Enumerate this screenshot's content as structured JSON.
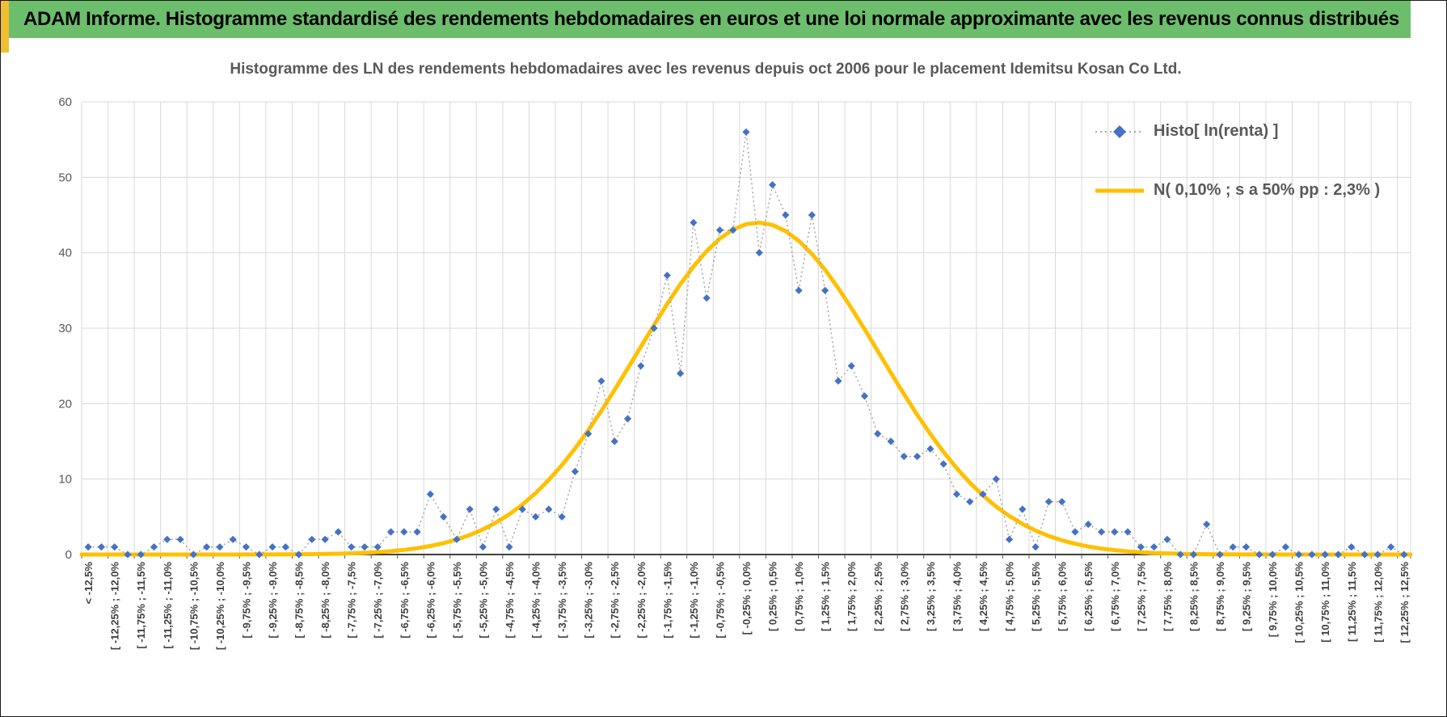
{
  "header": {
    "title": "ADAM Informe. Histogramme standardisé des rendements hebdomadaires en euros et une loi normale approximante avec les revenus connus distribués"
  },
  "colors": {
    "header_bg": "#6CBE6C",
    "accent_gold": "#EFBF2F",
    "grid": "#D9D9D9",
    "axis": "#000000",
    "text": "#595959"
  },
  "chart_data": {
    "type": "line",
    "title": "Histogramme des LN des rendements hebdomadaires avec les revenus depuis oct 2006 pour le placement Idemitsu Kosan Co Ltd.",
    "ylim": [
      0,
      60
    ],
    "y_ticks": [
      0,
      10,
      20,
      30,
      40,
      50,
      60
    ],
    "grid": true,
    "legend_position": "top-right",
    "bin_width_pct": 0.25,
    "range_pct": [
      -12.5,
      12.5
    ],
    "categories": [
      "< -12,5%",
      "",
      "[ -12,25% ; -12,0%",
      "",
      "[ -11,75% ; -11,5%",
      "",
      "[ -11,25% ; -11,0%",
      "",
      "[ -10,75% ; -10,5%",
      "",
      "[ -10,25% ; -10,0%",
      "",
      "[ -9,75% ; -9,5%",
      "",
      "[ -9,25% ; -9,0%",
      "",
      "[ -8,75% ; -8,5%",
      "",
      "[ -8,25% ; -8,0%",
      "",
      "[ -7,75% ; -7,5%",
      "",
      "[ -7,25% ; -7,0%",
      "",
      "[ -6,75% ; -6,5%",
      "",
      "[ -6,25% ; -6,0%",
      "",
      "[ -5,75% ; -5,5%",
      "",
      "[ -5,25% ; -5,0%",
      "",
      "[ -4,75% ; -4,5%",
      "",
      "[ -4,25% ; -4,0%",
      "",
      "[ -3,75% ; -3,5%",
      "",
      "[ -3,25% ; -3,0%",
      "",
      "[ -2,75% ; -2,5%",
      "",
      "[ -2,25% ; -2,0%",
      "",
      "[ -1,75% ; -1,5%",
      "",
      "[ -1,25% ; -1,0%",
      "",
      "[ -0,75% ; -0,5%",
      "",
      "[ -0,25% ; 0,0%",
      "",
      "[ 0,25% ; 0,5%",
      "",
      "[ 0,75% ; 1,0%",
      "",
      "[ 1,25% ; 1,5%",
      "",
      "[ 1,75% ; 2,0%",
      "",
      "[ 2,25% ; 2,5%",
      "",
      "[ 2,75% ; 3,0%",
      "",
      "[ 3,25% ; 3,5%",
      "",
      "[ 3,75% ; 4,0%",
      "",
      "[ 4,25% ; 4,5%",
      "",
      "[ 4,75% ; 5,0%",
      "",
      "[ 5,25% ; 5,5%",
      "",
      "[ 5,75% ; 6,0%",
      "",
      "[ 6,25% ; 6,5%",
      "",
      "[ 6,75% ; 7,0%",
      "",
      "[ 7,25% ; 7,5%",
      "",
      "[ 7,75% ; 8,0%",
      "",
      "[ 8,25% ; 8,5%",
      "",
      "[ 8,75% ; 9,0%",
      "",
      "[ 9,25% ; 9,5%",
      "",
      "[ 9,75% ; 10,0%",
      "",
      "[ 10,25% ; 10,5%",
      "",
      "[ 10,75% ; 11,0%",
      "",
      "[ 11,25% ; 11,5%",
      "",
      "[ 11,75% ; 12,0%",
      "",
      "[ 12,25% ; 12,5%"
    ],
    "series": [
      {
        "name": "Histo[ ln(renta) ]",
        "type": "scatter_dotted",
        "marker_color": "#4472C4",
        "line_color": "#A6A6A6",
        "values": [
          1,
          1,
          1,
          0,
          0,
          1,
          2,
          2,
          0,
          1,
          1,
          2,
          1,
          0,
          1,
          1,
          0,
          2,
          2,
          3,
          1,
          1,
          1,
          3,
          3,
          3,
          8,
          5,
          2,
          6,
          1,
          6,
          1,
          6,
          5,
          6,
          5,
          11,
          16,
          23,
          15,
          18,
          25,
          30,
          37,
          24,
          44,
          34,
          43,
          43,
          56,
          40,
          49,
          45,
          35,
          45,
          35,
          23,
          25,
          21,
          16,
          15,
          13,
          13,
          14,
          12,
          8,
          7,
          8,
          10,
          2,
          6,
          1,
          7,
          7,
          3,
          4,
          3,
          3,
          3,
          1,
          1,
          2,
          0,
          0,
          4,
          0,
          1,
          1,
          0,
          0,
          1,
          0,
          0,
          0,
          0,
          1,
          0,
          0,
          1,
          0
        ]
      },
      {
        "name": "N( 0,10% ; s a 50% pp : 2,3% )",
        "type": "normal_curve",
        "color": "#FFC000",
        "mean_pct": 0.1,
        "sd_pct": 2.3,
        "peak_count": 44
      }
    ]
  }
}
